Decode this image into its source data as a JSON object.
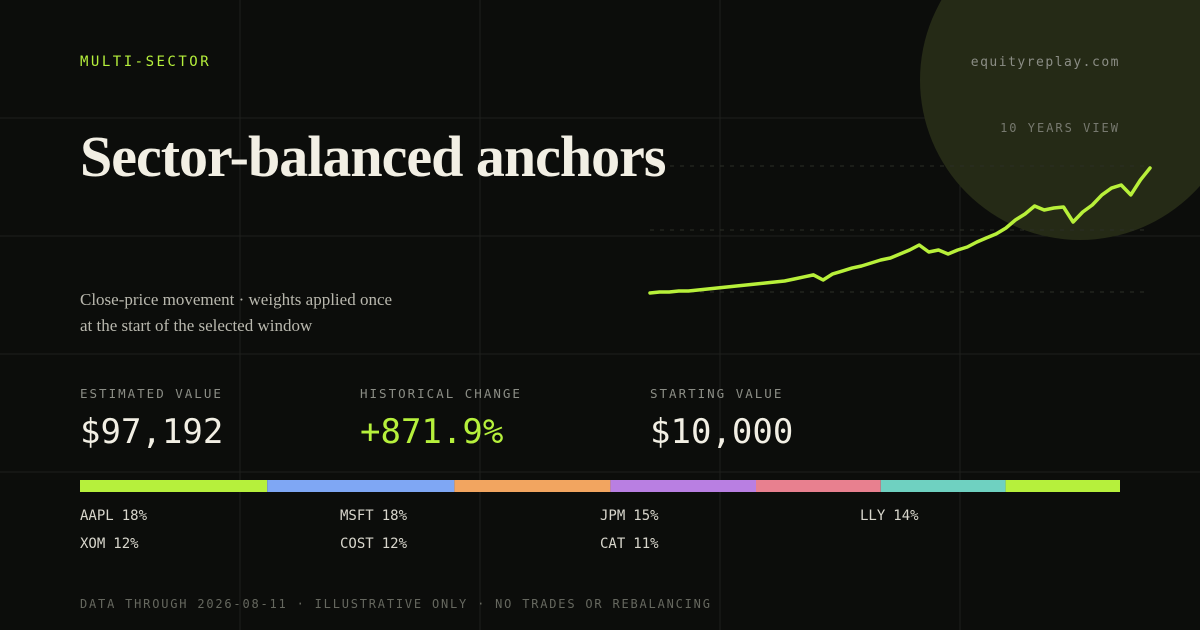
{
  "brand": "equityreplay.com",
  "tag": "MULTI-SECTOR",
  "title": "Sector-balanced anchors",
  "subtitle_lines": [
    "Close-price movement · weights applied once",
    "at the start of the selected window"
  ],
  "chart_data": {
    "type": "line",
    "label": "10 YEARS VIEW",
    "color": "#b8f03a",
    "values": [
      10000,
      10700,
      10700,
      11400,
      11400,
      12100,
      12800,
      13500,
      14200,
      14900,
      15600,
      16300,
      17000,
      17700,
      18400,
      19800,
      21200,
      22600,
      19100,
      23300,
      25300,
      27400,
      28800,
      30900,
      33000,
      34400,
      37200,
      40000,
      43500,
      38600,
      40000,
      37200,
      40000,
      42100,
      45600,
      48400,
      51200,
      55300,
      60900,
      65100,
      70700,
      67900,
      69300,
      70000,
      59500,
      66500,
      71400,
      78400,
      83200,
      85300,
      78400,
      88800,
      97192
    ]
  },
  "stats": [
    {
      "label": "ESTIMATED VALUE",
      "value": "$97,192"
    },
    {
      "label": "HISTORICAL CHANGE",
      "value": "+871.9%"
    },
    {
      "label": "STARTING VALUE",
      "value": "$10,000"
    }
  ],
  "allocation": {
    "names": [
      "AAPL",
      "MSFT",
      "JPM",
      "LLY",
      "XOM",
      "COST",
      "CAT"
    ],
    "weights": [
      18,
      18,
      15,
      14,
      12,
      12,
      11
    ],
    "value_labels": [
      "18%",
      "18%",
      "15%",
      "14%",
      "12%",
      "12%",
      "11%"
    ],
    "colors": [
      "#b6f03c",
      "#7fa7f4",
      "#f2a560",
      "#b97fe2",
      "#e8808f",
      "#6fd1c1",
      "#b6f03c"
    ]
  },
  "footer": "DATA THROUGH 2026-08-11 · ILLUSTRATIVE ONLY · NO TRADES OR REBALANCING"
}
